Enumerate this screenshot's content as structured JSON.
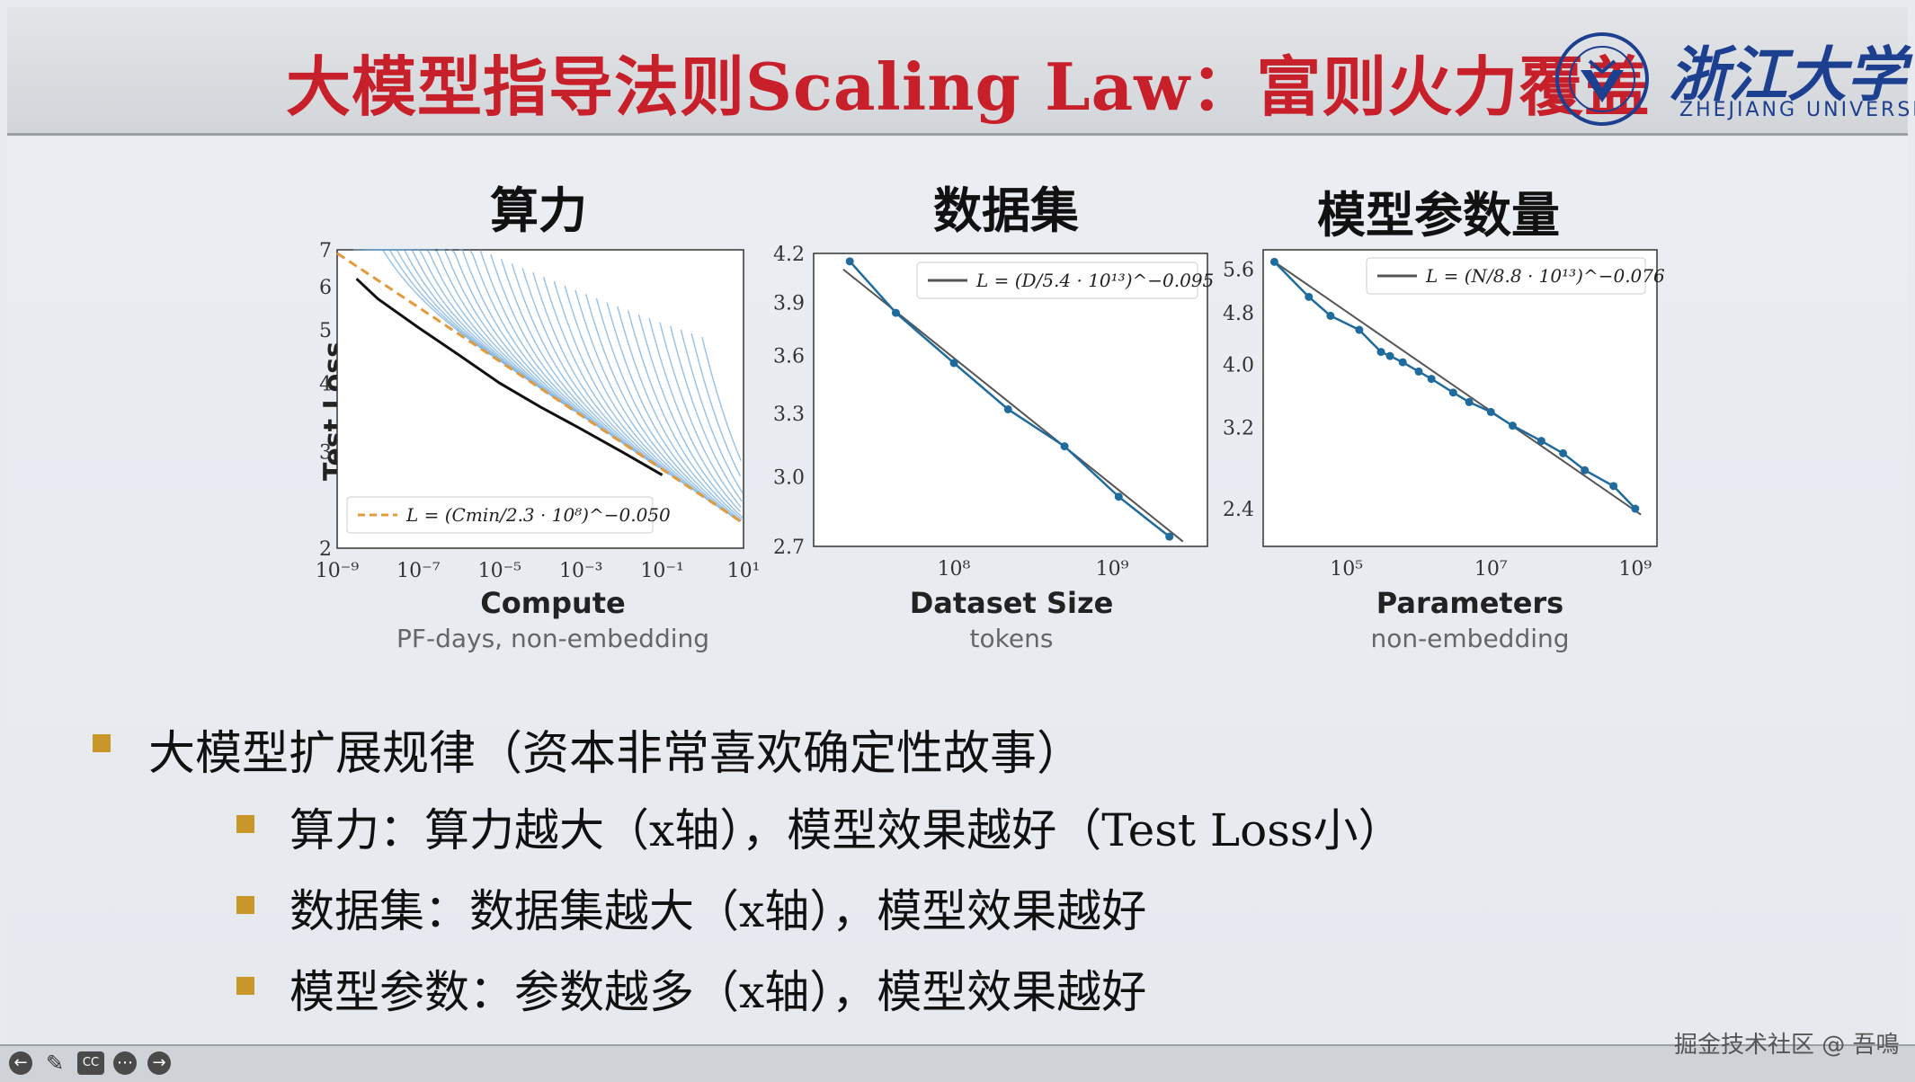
{
  "slide": {
    "title": "大模型指导法则Scaling Law：富则火力覆盖",
    "logo_cn": "浙江大学",
    "logo_en": "ZHEJIANG UNIVERSITY"
  },
  "chart_data": [
    {
      "type": "line",
      "title": "算力",
      "xlabel": "Compute",
      "xlabel_sub": "PF-days, non-embedding",
      "ylabel": "Test Loss",
      "x_scale": "log",
      "y_scale": "log",
      "xlim": [
        1e-09,
        10
      ],
      "ylim": [
        2,
        7
      ],
      "x_ticks": [
        "10⁻⁹",
        "10⁻⁷",
        "10⁻⁵",
        "10⁻³",
        "10⁻¹",
        "10¹"
      ],
      "y_ticks": [
        "2",
        "3",
        "4",
        "5",
        "6",
        "7"
      ],
      "legend": "L = (Cmin/2.3 · 10⁸)^−0.050",
      "legend_position": "bottom-left",
      "fit": {
        "x": [
          1e-09,
          10
        ],
        "y": [
          6.9,
          2.22
        ]
      },
      "frontier": {
        "x": [
          3e-09,
          1e-08,
          1e-07,
          1e-06,
          1e-05,
          0.0001,
          0.001,
          0.01,
          0.1
        ],
        "y": [
          6.2,
          5.7,
          5.05,
          4.5,
          4.0,
          3.62,
          3.3,
          3.0,
          2.72
        ]
      }
    },
    {
      "type": "line",
      "title": "数据集",
      "xlabel": "Dataset Size",
      "xlabel_sub": "tokens",
      "x_scale": "log",
      "y_scale": "log",
      "xlim": [
        13000000.0,
        4000000000.0
      ],
      "ylim": [
        2.7,
        4.2
      ],
      "x_ticks": [
        "10⁸",
        "10⁹"
      ],
      "y_ticks": [
        "2.7",
        "3.0",
        "3.3",
        "3.6",
        "3.9",
        "4.2"
      ],
      "legend": "L = (D/5.4 · 10¹³)^−0.095",
      "legend_position": "top-right",
      "x": [
        22000000.0,
        43000000.0,
        100000000.0,
        220000000.0,
        500000000.0,
        1100000000.0,
        2300000000.0
      ],
      "y": [
        4.15,
        3.84,
        3.56,
        3.32,
        3.14,
        2.91,
        2.74
      ]
    },
    {
      "type": "line",
      "title": "模型参数量",
      "xlabel": "Parameters",
      "xlabel_sub": "non-embedding",
      "x_scale": "log",
      "y_scale": "log",
      "xlim": [
        7000.0,
        2000000000.0
      ],
      "ylim": [
        2.1,
        6.0
      ],
      "x_ticks": [
        "10⁵",
        "10⁷",
        "10⁹"
      ],
      "y_ticks": [
        "2.4",
        "3.2",
        "4.0",
        "4.8",
        "5.6"
      ],
      "legend": "L = (N/8.8 · 10¹³)^−0.076",
      "legend_position": "top-right",
      "x": [
        10000.0,
        30000.0,
        60000.0,
        150000.0,
        300000.0,
        400000.0,
        600000.0,
        1000000.0,
        1500000.0,
        3000000.0,
        5000000.0,
        10000000.0,
        20000000.0,
        50000000.0,
        100000000.0,
        200000000.0,
        500000000.0,
        1000000000.0
      ],
      "y": [
        5.75,
        5.08,
        4.75,
        4.52,
        4.18,
        4.12,
        4.03,
        3.9,
        3.8,
        3.62,
        3.5,
        3.38,
        3.22,
        3.05,
        2.92,
        2.75,
        2.6,
        2.4
      ]
    }
  ],
  "bullets": {
    "main": "大模型扩展规律（资本非常喜欢确定性故事）",
    "sub": [
      "算力：算力越大（x轴），模型效果越好（Test Loss小）",
      "数据集：数据集越大（x轴），模型效果越好",
      "模型参数：参数越多（x轴），模型效果越好"
    ]
  },
  "footer": {
    "watermark": "掘金技术社区 @ 吾鳴",
    "controls": [
      "prev-icon",
      "pen-icon",
      "cc-icon",
      "more-icon",
      "next-icon"
    ],
    "cc_label": "CC"
  },
  "colors": {
    "title": "#c8202a",
    "logo": "#1d3f8f",
    "bullet": "#c9962a",
    "series": "#1f6b9e",
    "curves": "#6aa5d8",
    "fit_dashed": "#e39a3a"
  }
}
